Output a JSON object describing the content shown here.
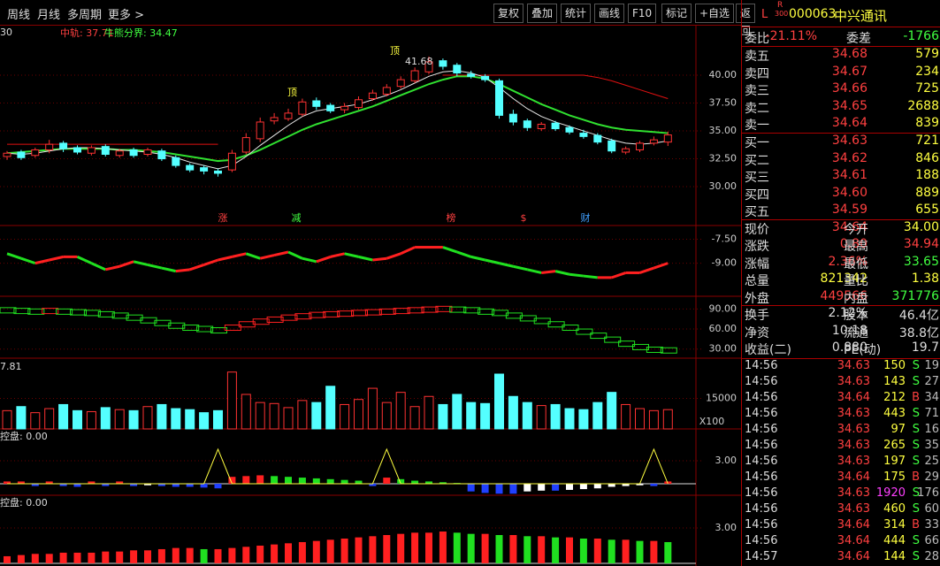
{
  "toolbar": {
    "left": [
      "周线",
      "月线",
      "多周期",
      "更多 >"
    ],
    "right": [
      "复权",
      "叠加",
      "统计",
      "画线",
      "F10",
      "标记",
      "+自选",
      "返回"
    ]
  },
  "quote": {
    "mark_l": "L",
    "mark_r": "R",
    "mark_300": "300",
    "code": "000063",
    "name": "中兴通讯",
    "ratio": [
      "委比",
      "-21.11%",
      "委差",
      "-1766"
    ],
    "asks": [
      [
        "卖五",
        "34.68",
        "579"
      ],
      [
        "卖四",
        "34.67",
        "234"
      ],
      [
        "卖三",
        "34.66",
        "725"
      ],
      [
        "卖二",
        "34.65",
        "2688"
      ],
      [
        "卖一",
        "34.64",
        "839"
      ]
    ],
    "bids": [
      [
        "买一",
        "34.63",
        "721"
      ],
      [
        "买二",
        "34.62",
        "846"
      ],
      [
        "买三",
        "34.61",
        "188"
      ],
      [
        "买四",
        "34.60",
        "889"
      ],
      [
        "买五",
        "34.59",
        "655"
      ]
    ],
    "stats": [
      [
        "现价",
        "34.64",
        "今开",
        "34.00"
      ],
      [
        "涨跌",
        "0.80",
        "最高",
        "34.94"
      ],
      [
        "涨幅",
        "2.36%",
        "最低",
        "33.65"
      ],
      [
        "总量",
        "821342",
        "量比",
        "1.38"
      ],
      [
        "外盘",
        "449566",
        "内盘",
        "371776"
      ]
    ],
    "stats_colors": [
      [
        "#ff4040",
        "#ffff40"
      ],
      [
        "#ff4040",
        "#ff4040"
      ],
      [
        "#ff4040",
        "#40ff40"
      ],
      [
        "#ffff40",
        "#ffff40"
      ],
      [
        "#ff4040",
        "#40ff40"
      ]
    ],
    "info": [
      [
        "换手",
        "2.12%",
        "股本",
        "46.4亿"
      ],
      [
        "净资",
        "10.18",
        "流通",
        "38.8亿"
      ],
      [
        "收益(二)",
        "0.880",
        "PE(动)",
        "19.7"
      ]
    ],
    "ticks": [
      [
        "14:56",
        "34.63",
        "150",
        "S",
        "19"
      ],
      [
        "14:56",
        "34.63",
        "143",
        "S",
        "27"
      ],
      [
        "14:56",
        "34.64",
        "212",
        "B",
        "34"
      ],
      [
        "14:56",
        "34.63",
        "443",
        "S",
        "71"
      ],
      [
        "14:56",
        "34.63",
        "97",
        "S",
        "16"
      ],
      [
        "14:56",
        "34.63",
        "265",
        "S",
        "35"
      ],
      [
        "14:56",
        "34.63",
        "197",
        "S",
        "25"
      ],
      [
        "14:56",
        "34.64",
        "175",
        "B",
        "29"
      ],
      [
        "14:56",
        "34.63",
        "1920",
        "S",
        "176"
      ],
      [
        "14:56",
        "34.63",
        "460",
        "S",
        "60"
      ],
      [
        "14:56",
        "34.64",
        "314",
        "B",
        "33"
      ],
      [
        "14:56",
        "34.64",
        "444",
        "S",
        "66"
      ],
      [
        "14:57",
        "34.64",
        "144",
        "S",
        "28"
      ]
    ]
  },
  "chart_data": [
    {
      "type": "candlestick",
      "corner_label": "30",
      "mid_label": "中轨: 37.71",
      "bull_label": "牛熊分界: 34.47",
      "annotations": [
        "顶",
        "顶",
        "41.68"
      ],
      "events": [
        "涨",
        "减",
        "榜",
        "$",
        "财"
      ],
      "up_color": "#ff3232",
      "down_color": "#54ffff",
      "ylim": [
        26.51,
        44.37
      ],
      "yticks": [
        {
          "value": 40,
          "label": "40.00"
        },
        {
          "value": 37.5,
          "label": "37.50"
        },
        {
          "value": 35,
          "label": "35.00"
        },
        {
          "value": 32.5,
          "label": "32.50"
        },
        {
          "value": 30,
          "label": "30.00"
        }
      ],
      "open": [
        32.7,
        33.1,
        32.8,
        33.3,
        33.9,
        33.5,
        33.0,
        33.6,
        32.8,
        33.3,
        32.9,
        33.2,
        32.6,
        31.9,
        31.7,
        31.4,
        31.5,
        33.1,
        34.3,
        35.9,
        36.1,
        36.5,
        37.7,
        37.3,
        36.9,
        37.1,
        37.9,
        38.3,
        39.0,
        39.5,
        40.3,
        41.3,
        40.9,
        40.1,
        39.9,
        39.5,
        36.5,
        35.9,
        35.2,
        35.7,
        35.3,
        34.8,
        34.6,
        34.1,
        33.1,
        33.3,
        33.9,
        34.0
      ],
      "high": [
        33.2,
        33.3,
        33.5,
        34.2,
        34.1,
        33.7,
        33.7,
        33.8,
        33.4,
        33.5,
        33.5,
        33.4,
        32.8,
        32.1,
        31.9,
        31.6,
        33.3,
        34.8,
        36.2,
        36.6,
        37.0,
        37.9,
        38.0,
        37.5,
        37.5,
        38.1,
        38.7,
        39.2,
        39.9,
        40.7,
        41.68,
        41.5,
        41.1,
        40.4,
        40.1,
        39.7,
        36.9,
        36.1,
        35.8,
        35.9,
        35.5,
        35.1,
        34.8,
        34.3,
        33.6,
        34.1,
        34.5,
        34.94
      ],
      "low": [
        32.4,
        32.4,
        32.6,
        33.0,
        33.1,
        32.9,
        32.8,
        32.7,
        32.6,
        32.6,
        32.7,
        32.3,
        31.7,
        31.3,
        31.1,
        30.9,
        31.3,
        32.9,
        34.0,
        35.6,
        35.9,
        36.3,
        36.9,
        36.6,
        36.6,
        36.9,
        37.7,
        38.1,
        38.8,
        39.3,
        40.1,
        40.5,
        39.9,
        39.7,
        39.4,
        36.1,
        35.5,
        35.0,
        35.0,
        35.0,
        34.7,
        34.3,
        33.8,
        33.0,
        32.9,
        33.1,
        33.7,
        33.65
      ],
      "close": [
        33.0,
        32.6,
        33.3,
        33.8,
        33.4,
        33.1,
        33.5,
        32.9,
        33.2,
        32.8,
        33.3,
        32.5,
        31.9,
        31.5,
        31.4,
        31.2,
        33.0,
        34.4,
        35.8,
        36.2,
        36.6,
        37.6,
        37.2,
        36.8,
        37.2,
        37.8,
        38.4,
        38.9,
        39.6,
        40.4,
        41.2,
        40.8,
        40.2,
        39.9,
        39.6,
        36.4,
        35.8,
        35.3,
        35.6,
        35.2,
        34.9,
        34.5,
        34.0,
        33.2,
        33.4,
        33.9,
        34.2,
        34.64
      ],
      "lines": [
        {
          "color": "#e01010",
          "values": [
            33.8,
            33.8,
            33.8,
            33.8,
            33.8,
            33.8,
            33.8,
            33.8,
            33.8,
            33.8,
            33.8,
            33.8,
            33.8,
            33.8,
            33.8,
            33.8,
            null,
            null,
            null,
            null,
            null,
            null,
            null,
            null,
            null,
            null,
            null,
            null,
            null,
            null,
            null,
            40.0,
            40.0,
            40.0,
            40.0,
            40.0,
            40.0,
            40.0,
            40.0,
            40.0,
            40.0,
            40.0,
            39.8,
            39.5,
            39.1,
            38.7,
            38.3,
            37.9
          ]
        },
        {
          "color": "#30e030",
          "values": [
            33.0,
            33.1,
            33.2,
            33.3,
            33.4,
            33.4,
            33.4,
            33.4,
            33.3,
            33.3,
            33.2,
            33.1,
            32.9,
            32.7,
            32.5,
            32.3,
            32.4,
            32.8,
            33.3,
            33.9,
            34.5,
            35.1,
            35.6,
            36.0,
            36.4,
            36.8,
            37.2,
            37.7,
            38.2,
            38.7,
            39.2,
            39.6,
            39.9,
            39.9,
            39.7,
            39.2,
            38.6,
            38.0,
            37.4,
            36.9,
            36.4,
            36.0,
            35.6,
            35.3,
            35.1,
            35.0,
            34.9,
            34.8
          ]
        },
        {
          "color": "#e8e8e8",
          "values": [
            33.0,
            32.9,
            33.0,
            33.2,
            33.4,
            33.5,
            33.5,
            33.4,
            33.3,
            33.2,
            33.1,
            32.9,
            32.6,
            32.2,
            31.9,
            31.6,
            31.9,
            32.7,
            33.7,
            34.6,
            35.5,
            36.3,
            36.8,
            37.0,
            37.2,
            37.4,
            37.8,
            38.2,
            38.7,
            39.3,
            39.9,
            40.3,
            40.4,
            40.2,
            39.8,
            38.9,
            37.9,
            37.0,
            36.3,
            35.8,
            35.4,
            35.0,
            34.6,
            34.2,
            33.9,
            33.8,
            33.9,
            34.1
          ]
        }
      ]
    },
    {
      "type": "trendline",
      "up_color": "#ff2020",
      "down_color": "#20e020",
      "ylim": [
        -10.96,
        -6.75
      ],
      "yticks": [
        {
          "value": -7.5,
          "label": "-7.50"
        },
        {
          "value": -9,
          "label": "-9.00"
        }
      ],
      "values": [
        -8.4,
        -8.7,
        -9.0,
        -8.8,
        -8.6,
        -8.6,
        -9.0,
        -9.4,
        -9.2,
        -8.9,
        -9.1,
        -9.3,
        -9.5,
        -9.4,
        -9.1,
        -8.8,
        -8.6,
        -8.4,
        -8.7,
        -8.5,
        -8.3,
        -8.7,
        -8.9,
        -8.6,
        -8.4,
        -8.6,
        -8.8,
        -8.7,
        -8.4,
        -8.0,
        -8.0,
        -8.0,
        -8.3,
        -8.6,
        -8.8,
        -9.0,
        -9.2,
        -9.4,
        -9.6,
        -9.5,
        -9.7,
        -9.8,
        -9.9,
        -9.9,
        -9.6,
        -9.6,
        -9.3,
        -9.0
      ]
    },
    {
      "type": "ladder",
      "up_color": "#ff2020",
      "down_color": "#20e020",
      "ylim": [
        16.4,
        105
      ],
      "yticks": [
        {
          "value": 90,
          "label": "90.00"
        },
        {
          "value": 60,
          "label": "60.00"
        },
        {
          "value": 30,
          "label": "30.00"
        }
      ],
      "values": [
        88,
        87,
        86,
        87,
        86,
        85,
        84,
        82,
        80,
        77,
        73,
        69,
        65,
        62,
        60,
        58,
        62,
        67,
        71,
        74,
        77,
        79,
        81,
        82,
        83,
        84,
        85,
        86,
        87,
        88,
        89,
        90,
        89,
        88,
        86,
        84,
        80,
        76,
        72,
        67,
        62,
        56,
        50,
        44,
        38,
        33,
        29,
        28
      ]
    },
    {
      "type": "volume",
      "corner_label": "7.81",
      "unit_label": "X100",
      "ylim": [
        0,
        33530
      ],
      "yticks": [
        15000
      ],
      "values": [
        9000,
        11000,
        8000,
        10000,
        12000,
        9000,
        8500,
        10500,
        9500,
        9000,
        11000,
        12000,
        10000,
        9500,
        8000,
        9000,
        28000,
        17000,
        13000,
        12500,
        10500,
        14000,
        13000,
        21000,
        12000,
        14500,
        20000,
        13000,
        18000,
        11000,
        16000,
        12000,
        17000,
        13000,
        12500,
        27000,
        16000,
        13000,
        11500,
        12000,
        10000,
        9500,
        13000,
        18000,
        12000,
        10000,
        9000,
        9500
      ]
    },
    {
      "type": "signal",
      "corner_label": "控盘: 0.00",
      "ylim": [
        -1.5,
        6.92
      ],
      "yticks": [
        {
          "value": 3,
          "label": "3.00"
        }
      ],
      "values": [
        0.3,
        0.3,
        -0.3,
        0.3,
        -0.3,
        -0.4,
        0.3,
        -0.3,
        0.3,
        -0.3,
        -0.2,
        -0.3,
        -0.4,
        -0.4,
        -0.5,
        -0.6,
        0.9,
        1.0,
        1.1,
        1.0,
        0.9,
        0.8,
        0.7,
        0.6,
        0.5,
        0.4,
        -0.3,
        0.8,
        0.6,
        0.4,
        0.3,
        0.2,
        0.1,
        -1.0,
        -1.2,
        -1.3,
        -1.3,
        -1.0,
        -0.9,
        -0.9,
        -0.8,
        -0.7,
        -0.6,
        -0.4,
        -0.3,
        -0.2,
        -0.3,
        0.3
      ],
      "signal": [
        0,
        0,
        0,
        0,
        0,
        0,
        0,
        0,
        0,
        0,
        0,
        0,
        0,
        0,
        0,
        4.5,
        0,
        0,
        0,
        0,
        0,
        0,
        0,
        0,
        0,
        0,
        0,
        4.5,
        0,
        0,
        0,
        0,
        0,
        0,
        0,
        0,
        0,
        0,
        0,
        0,
        0,
        0,
        0,
        0,
        0,
        0,
        4.5,
        0
      ]
    },
    {
      "type": "signal",
      "corner_label": "控盘: 0.00",
      "ylim": [
        -0.23,
        5.63
      ],
      "yticks": [
        {
          "value": 3,
          "label": "3.00"
        }
      ],
      "values": [
        0.6,
        0.7,
        0.8,
        0.8,
        0.9,
        0.9,
        0.9,
        1.0,
        1.0,
        1.1,
        1.1,
        1.2,
        1.3,
        1.3,
        1.2,
        1.2,
        1.3,
        1.4,
        1.5,
        1.6,
        1.7,
        1.8,
        1.9,
        2.0,
        2.1,
        2.2,
        2.3,
        2.4,
        2.5,
        2.6,
        2.6,
        2.7,
        2.6,
        2.5,
        2.5,
        2.4,
        2.4,
        2.3,
        2.3,
        2.2,
        2.2,
        2.1,
        2.1,
        2.0,
        2.0,
        1.9,
        1.9,
        1.8
      ]
    }
  ]
}
